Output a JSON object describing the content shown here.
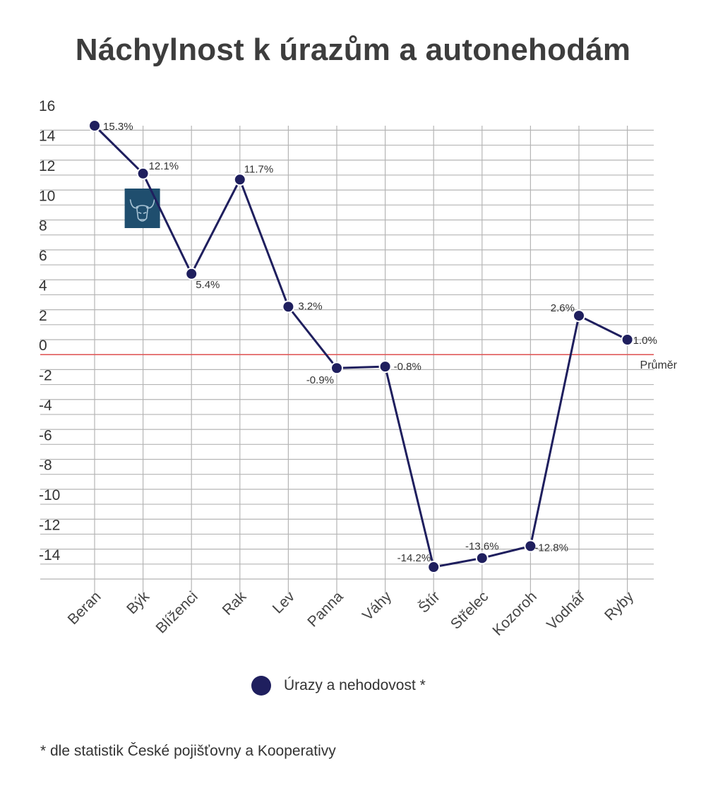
{
  "title": "Náchylnost k úrazům a autonehodám",
  "chart_data": {
    "type": "line",
    "categories": [
      "Beran",
      "Býk",
      "Blíženci",
      "Rak",
      "Lev",
      "Panna",
      "Váhy",
      "Štír",
      "Střelec",
      "Kozoroh",
      "Vodnář",
      "Ryby"
    ],
    "series": [
      {
        "name": "Úrazy a nehodovost *",
        "values": [
          15.3,
          12.1,
          5.4,
          11.7,
          3.2,
          -0.9,
          -0.8,
          -14.2,
          -13.6,
          -12.8,
          2.6,
          1.0
        ],
        "labels": [
          "15.3%",
          "12.1%",
          "5.4%",
          "11.7%",
          "3.2%",
          "-0.9%",
          "-0.8%",
          "-14.2%",
          "-13.6%",
          "-12.8%",
          "2.6%",
          "1.0%"
        ],
        "color": "#1f1f5e"
      }
    ],
    "yticks": [
      16,
      14,
      12,
      10,
      8,
      6,
      4,
      2,
      0,
      -2,
      -4,
      -6,
      -8,
      -10,
      -12,
      -14
    ],
    "ylim": [
      -14,
      16
    ],
    "grid": true,
    "reference_line": {
      "value": 0,
      "label": "Průměr",
      "color": "#e05a5a"
    },
    "icon": {
      "name": "bull-icon",
      "category": "Býk",
      "color": "#1f4e6e"
    },
    "legend_position": "bottom"
  },
  "footnote": "* dle statistik České pojišťovny a Kooperativy"
}
